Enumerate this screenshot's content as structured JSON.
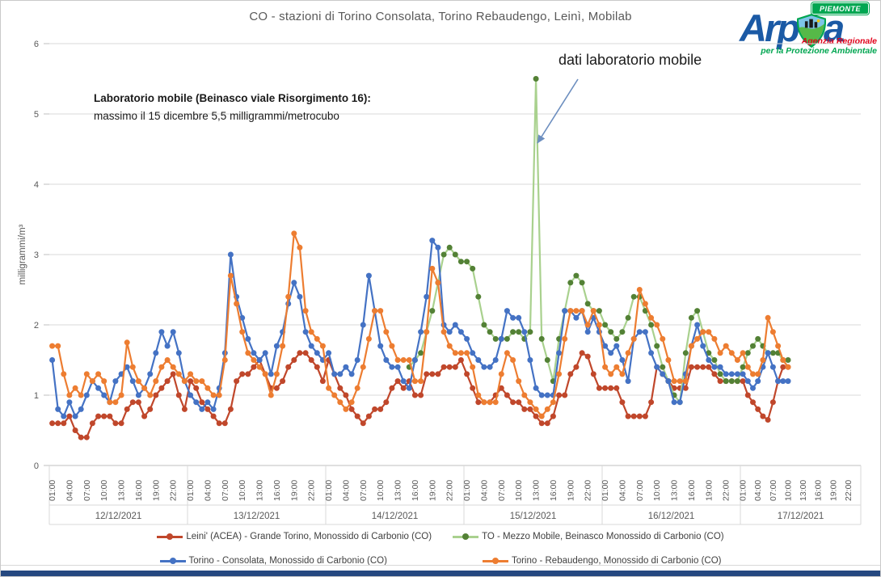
{
  "title": "CO - stazioni di Torino Consolata, Torino Rebaudengo, Leinì, Mobilab",
  "callout": "dati laboratorio mobile",
  "note": {
    "line1": "Laboratorio mobile (Beinasco viale Risorgimento 16):",
    "line2": "massimo il 15 dicembre 5,5 milligrammi/metrocubo"
  },
  "logo": {
    "brand_pre": "Arp",
    "brand_post": "a",
    "badge": "PIEMONTE",
    "tagline1": "Agenzia Regionale",
    "tagline2": "per la Protezione Ambientale"
  },
  "chart_data": {
    "type": "line",
    "title": "CO - stazioni di Torino Consolata, Torino Rebaudengo, Leinì, Mobilab",
    "ylabel": "milligrammi/m³",
    "ylim": [
      0,
      6
    ],
    "yticks": [
      0,
      1,
      2,
      3,
      4,
      5,
      6
    ],
    "grid": true,
    "legend_position": "bottom",
    "x_resolution": "hourly",
    "x_start": "12/12/2021 01:00",
    "x_end": "17/12/2021 10:00",
    "days": [
      "12/12/2021",
      "13/12/2021",
      "14/12/2021",
      "15/12/2021",
      "16/12/2021",
      "17/12/2021"
    ],
    "hour_ticks": [
      "01:00",
      "04:00",
      "07:00",
      "10:00",
      "13:00",
      "16:00",
      "19:00",
      "22:00"
    ],
    "legend_rows": [
      [
        0,
        1
      ],
      [
        2,
        3
      ]
    ],
    "series": [
      {
        "name": "Leini' (ACEA) - Grande Torino, Monossido di Carbonio (CO)",
        "color": "#C0472B",
        "start_index": 0,
        "values": [
          0.6,
          0.6,
          0.6,
          0.7,
          0.5,
          0.4,
          0.4,
          0.6,
          0.7,
          0.7,
          0.7,
          0.6,
          0.6,
          0.8,
          0.9,
          0.9,
          0.7,
          0.8,
          1.0,
          1.1,
          1.2,
          1.3,
          1.0,
          0.8,
          1.2,
          1.1,
          0.9,
          0.8,
          0.7,
          0.6,
          0.6,
          0.8,
          1.2,
          1.3,
          1.3,
          1.4,
          1.5,
          1.3,
          1.1,
          1.1,
          1.2,
          1.4,
          1.5,
          1.6,
          1.6,
          1.5,
          1.4,
          1.2,
          1.5,
          1.3,
          1.1,
          1.0,
          0.8,
          0.7,
          0.6,
          0.7,
          0.8,
          0.8,
          0.9,
          1.1,
          1.2,
          1.1,
          1.2,
          1.0,
          1.0,
          1.3,
          1.3,
          1.3,
          1.4,
          1.4,
          1.4,
          1.5,
          1.3,
          1.1,
          0.9,
          0.9,
          0.9,
          1.0,
          1.1,
          1.0,
          0.9,
          0.9,
          0.8,
          0.8,
          0.7,
          0.6,
          0.6,
          0.7,
          1.0,
          1.0,
          1.3,
          1.4,
          1.6,
          1.55,
          1.3,
          1.1,
          1.1,
          1.1,
          1.1,
          0.9,
          0.7,
          0.7,
          0.7,
          0.7,
          0.9,
          1.4,
          1.3,
          1.2,
          1.1,
          1.1,
          1.1,
          1.4,
          1.4,
          1.4,
          1.4,
          1.3,
          1.2,
          1.2,
          1.2,
          1.2,
          1.2,
          1.0,
          0.9,
          0.8,
          0.7,
          0.65,
          0.9,
          1.2,
          1.4,
          1.4
        ]
      },
      {
        "name": "TO - Mezzo Mobile, Beinasco Monossido di Carbonio (CO)",
        "color": "#A9D18E",
        "marker_color": "#538135",
        "start_index": 62,
        "values": [
          1.4,
          1.5,
          1.6,
          1.9,
          2.2,
          2.6,
          3.0,
          3.1,
          3.0,
          2.9,
          2.9,
          2.8,
          2.4,
          2.0,
          1.9,
          1.8,
          1.8,
          1.8,
          1.9,
          1.9,
          1.8,
          1.9,
          5.5,
          1.8,
          1.5,
          1.2,
          1.8,
          2.2,
          2.6,
          2.7,
          2.6,
          2.3,
          2.2,
          2.2,
          2.0,
          1.9,
          1.8,
          1.9,
          2.1,
          2.4,
          2.4,
          2.2,
          2.0,
          1.7,
          1.4,
          1.2,
          1.0,
          0.9,
          1.6,
          2.1,
          2.2,
          1.9,
          1.6,
          1.5,
          1.3,
          1.2,
          1.2,
          1.2,
          1.4,
          1.6,
          1.7,
          1.8,
          1.7,
          1.6,
          1.6,
          1.6,
          1.5,
          1.5
        ],
        "peak_note": {
          "value": 5.5,
          "day": "15/12/2021"
        }
      },
      {
        "name": "Torino - Consolata, Monossido di Carbonio (CO)",
        "color": "#4472C4",
        "start_index": 0,
        "values": [
          1.5,
          0.8,
          0.7,
          0.9,
          0.7,
          0.8,
          1.0,
          1.2,
          1.1,
          1.0,
          0.9,
          1.2,
          1.3,
          1.4,
          1.2,
          1.0,
          1.1,
          1.3,
          1.6,
          1.9,
          1.7,
          1.9,
          1.6,
          1.2,
          1.0,
          0.9,
          0.8,
          0.9,
          0.8,
          1.1,
          1.6,
          3.0,
          2.4,
          2.1,
          1.8,
          1.6,
          1.5,
          1.6,
          1.3,
          1.7,
          1.9,
          2.3,
          2.6,
          2.4,
          1.9,
          1.7,
          1.6,
          1.5,
          1.6,
          1.3,
          1.3,
          1.4,
          1.3,
          1.5,
          2.0,
          2.7,
          2.2,
          1.7,
          1.5,
          1.4,
          1.4,
          1.2,
          1.1,
          1.5,
          1.9,
          2.4,
          3.2,
          3.1,
          2.0,
          1.9,
          2.0,
          1.9,
          1.8,
          1.6,
          1.5,
          1.4,
          1.4,
          1.5,
          1.8,
          2.2,
          2.1,
          2.1,
          1.9,
          1.5,
          1.1,
          1.0,
          1.0,
          1.0,
          1.6,
          2.2,
          2.2,
          2.1,
          2.2,
          1.9,
          2.1,
          1.9,
          1.7,
          1.6,
          1.7,
          1.5,
          1.2,
          1.8,
          1.9,
          1.9,
          1.6,
          1.4,
          1.3,
          1.2,
          0.9,
          0.9,
          1.3,
          1.7,
          2.0,
          1.7,
          1.5,
          1.4,
          1.4,
          1.3,
          1.3,
          1.3,
          1.3,
          1.2,
          1.1,
          1.2,
          1.4,
          1.6,
          1.4,
          1.2,
          1.2,
          1.2
        ]
      },
      {
        "name": "Torino - Rebaudengo, Monossido di Carbonio (CO)",
        "color": "#ED7D31",
        "start_index": 0,
        "values": [
          1.7,
          1.7,
          1.3,
          1.0,
          1.1,
          1.0,
          1.3,
          1.2,
          1.3,
          1.2,
          0.9,
          0.9,
          1.0,
          1.75,
          1.4,
          1.2,
          1.1,
          1.0,
          1.2,
          1.4,
          1.5,
          1.4,
          1.3,
          1.2,
          1.3,
          1.2,
          1.2,
          1.1,
          1.0,
          1.0,
          1.5,
          2.7,
          2.3,
          1.9,
          1.6,
          1.5,
          1.4,
          1.3,
          1.0,
          1.3,
          1.7,
          2.4,
          3.3,
          3.1,
          2.2,
          1.9,
          1.8,
          1.7,
          1.1,
          1.0,
          0.9,
          0.8,
          0.9,
          1.1,
          1.4,
          1.8,
          2.2,
          2.2,
          1.9,
          1.7,
          1.5,
          1.5,
          1.5,
          1.2,
          1.2,
          1.9,
          2.8,
          2.6,
          1.9,
          1.7,
          1.6,
          1.6,
          1.6,
          1.4,
          1.0,
          0.9,
          0.9,
          0.9,
          1.3,
          1.6,
          1.5,
          1.2,
          1.0,
          0.9,
          0.8,
          0.7,
          0.8,
          0.9,
          1.3,
          1.8,
          2.2,
          2.2,
          2.2,
          2.0,
          2.2,
          2.0,
          1.4,
          1.3,
          1.4,
          1.3,
          1.6,
          1.8,
          2.5,
          2.3,
          2.1,
          2.0,
          1.8,
          1.5,
          1.2,
          1.2,
          1.2,
          1.7,
          1.8,
          1.9,
          1.9,
          1.8,
          1.6,
          1.7,
          1.6,
          1.5,
          1.6,
          1.4,
          1.3,
          1.3,
          1.5,
          2.1,
          1.9,
          1.7,
          1.5,
          1.4
        ]
      }
    ]
  }
}
